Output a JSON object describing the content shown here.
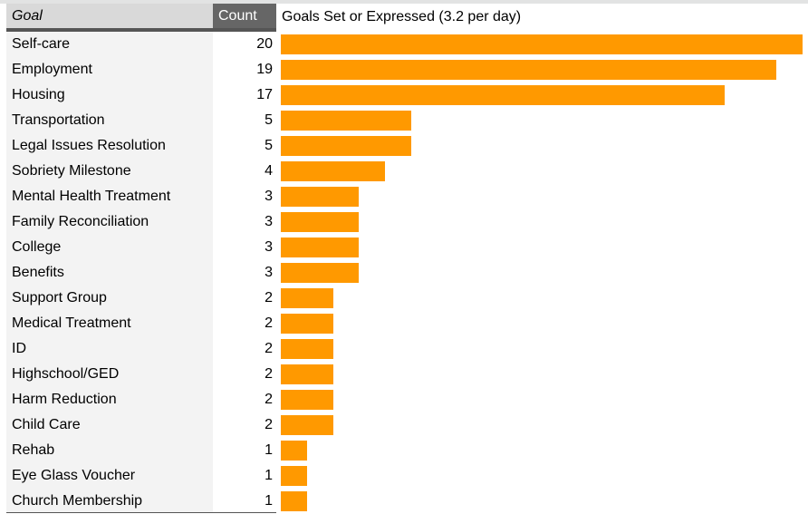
{
  "table": {
    "goal_header": "Goal",
    "count_header": "Count",
    "chart_title": "Goals Set or Expressed (3.2 per day)"
  },
  "colors": {
    "bar": "#ff9900",
    "goal_header_bg": "#d9d9d9",
    "count_header_bg": "#666666",
    "goal_column_bg": "#f3f3f3"
  },
  "chart_data": {
    "type": "bar",
    "orientation": "horizontal",
    "title": "Goals Set or Expressed (3.2 per day)",
    "xlim": [
      0,
      20
    ],
    "grid": false,
    "legend": "none",
    "categories": [
      "Self-care",
      "Employment",
      "Housing",
      "Transportation",
      "Legal Issues Resolution",
      "Sobriety Milestone",
      "Mental Health Treatment",
      "Family Reconciliation",
      "College",
      "Benefits",
      "Support Group",
      "Medical Treatment",
      "ID",
      "Highschool/GED",
      "Harm Reduction",
      "Child Care",
      "Rehab",
      "Eye Glass Voucher",
      "Church Membership"
    ],
    "values": [
      20,
      19,
      17,
      5,
      5,
      4,
      3,
      3,
      3,
      3,
      2,
      2,
      2,
      2,
      2,
      2,
      1,
      1,
      1
    ]
  }
}
